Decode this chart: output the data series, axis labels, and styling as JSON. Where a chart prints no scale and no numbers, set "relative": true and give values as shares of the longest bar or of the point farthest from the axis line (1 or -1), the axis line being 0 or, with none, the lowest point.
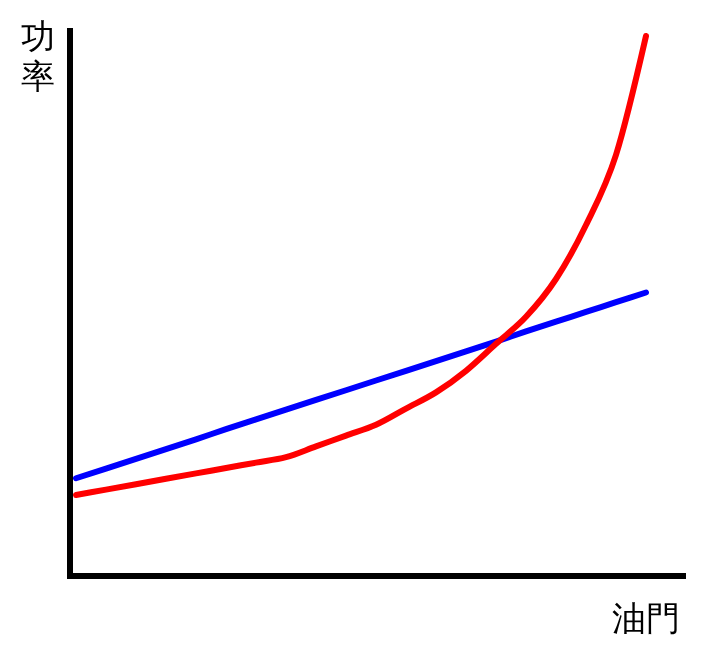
{
  "chart_data": {
    "type": "line",
    "relative": true,
    "xlabel": "油門",
    "ylabel": "功率",
    "grid": false,
    "categories": [
      null,
      null,
      null,
      null,
      null,
      null,
      null,
      null,
      null,
      null,
      null,
      null,
      null,
      null,
      null,
      null,
      null,
      null,
      null,
      null
    ],
    "series": [
      {
        "color": "#0000ff",
        "values": [
          0.181,
          0.199,
          0.217,
          0.235,
          0.253,
          0.272,
          0.29,
          0.308,
          0.326,
          0.344,
          0.362,
          0.38,
          0.398,
          0.416,
          0.434,
          0.453,
          0.471,
          0.489,
          0.507,
          0.525
        ]
      },
      {
        "color": "#ff0000",
        "values": [
          0.15,
          0.16,
          0.17,
          0.18,
          0.19,
          0.2,
          0.21,
          0.22,
          0.24,
          0.26,
          0.28,
          0.31,
          0.34,
          0.38,
          0.43,
          0.48,
          0.55,
          0.65,
          0.78,
          1
        ]
      }
    ]
  }
}
